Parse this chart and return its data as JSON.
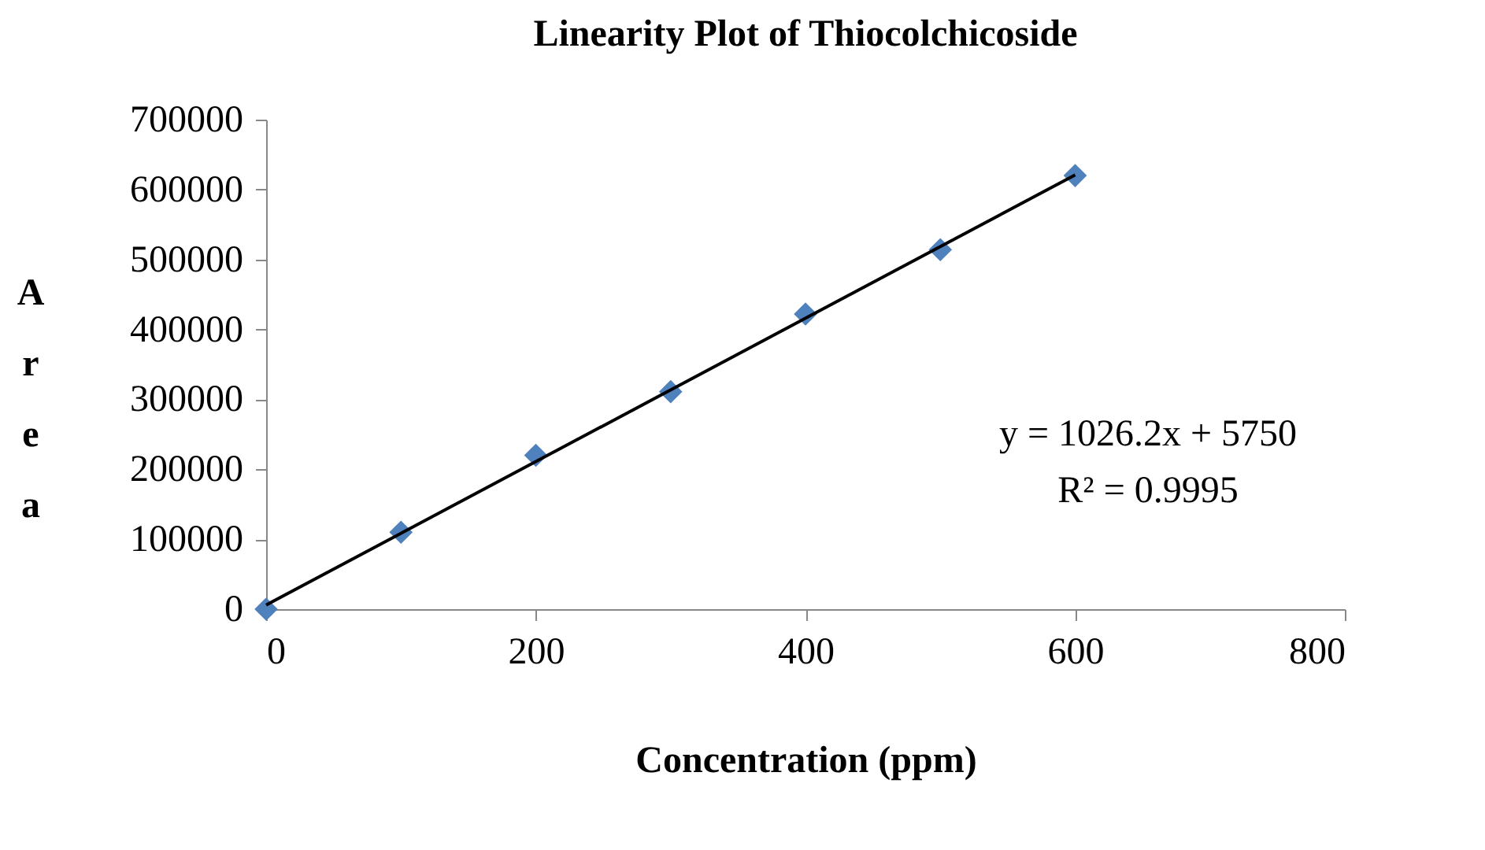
{
  "chart_data": {
    "type": "scatter",
    "title": "Linearity Plot of Thiocolchicoside",
    "xlabel": "Concentration (ppm)",
    "ylabel": "Area",
    "x": [
      0,
      100,
      200,
      300,
      400,
      500,
      600
    ],
    "series": [
      {
        "color": "#4f81bd",
        "marker": "diamond",
        "values": [
          0,
          110000,
          220000,
          311000,
          422000,
          514000,
          620000
        ]
      },
      {
        "type": "line",
        "color": "#000000",
        "line_style": "solid",
        "marker": "none",
        "x": [
          0,
          600
        ],
        "values": [
          6000,
          621000
        ]
      }
    ],
    "xlim": [
      0,
      800
    ],
    "xticks": [
      0,
      200,
      400,
      600,
      800
    ],
    "ylim": [
      0,
      700000
    ],
    "yticks": [
      0,
      100000,
      200000,
      300000,
      400000,
      500000,
      600000,
      700000
    ],
    "grid": false,
    "annotations": [
      "y = 1026.2x + 5750",
      "R² = 0.9995"
    ]
  }
}
